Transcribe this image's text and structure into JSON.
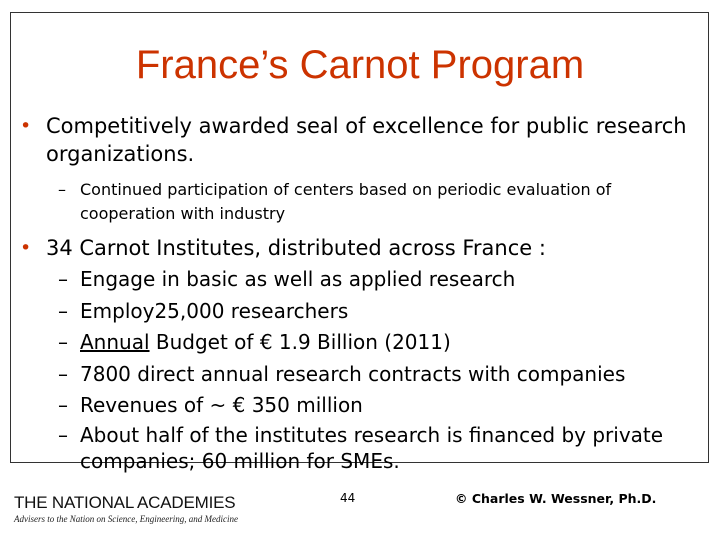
{
  "slide": {
    "title": "France’s Carnot Program",
    "bullets": [
      {
        "text": "Competitively awarded seal of excellence for public research organizations.",
        "subs": [
          "Continued participation of centers based on periodic evaluation of cooperation with industry"
        ]
      },
      {
        "text": "34 Carnot Institutes, distributed across France :",
        "subs": [
          "Engage in basic as well as applied research",
          "Employ25,000 researchers",
          "Annual",
          " Budget of € 1.9 Billion (2011)",
          "7800 direct annual research contracts with companies",
          "Revenues of ~ € 350 million",
          "About half of the institutes research is financed by private companies; 60 million for SMEs."
        ]
      }
    ],
    "bullet_symbol": "•",
    "dash_symbol": "–"
  },
  "footer": {
    "logo_name": "THE NATIONAL ACADEMIES",
    "logo_tagline": "Advisers to the Nation on Science, Engineering, and Medicine",
    "page_number": "44",
    "copyright": "© Charles W. Wessner, Ph.D."
  },
  "colors": {
    "title": "#cc3300",
    "bullet": "#cc3300",
    "text": "#000000",
    "frame": "#333333"
  }
}
